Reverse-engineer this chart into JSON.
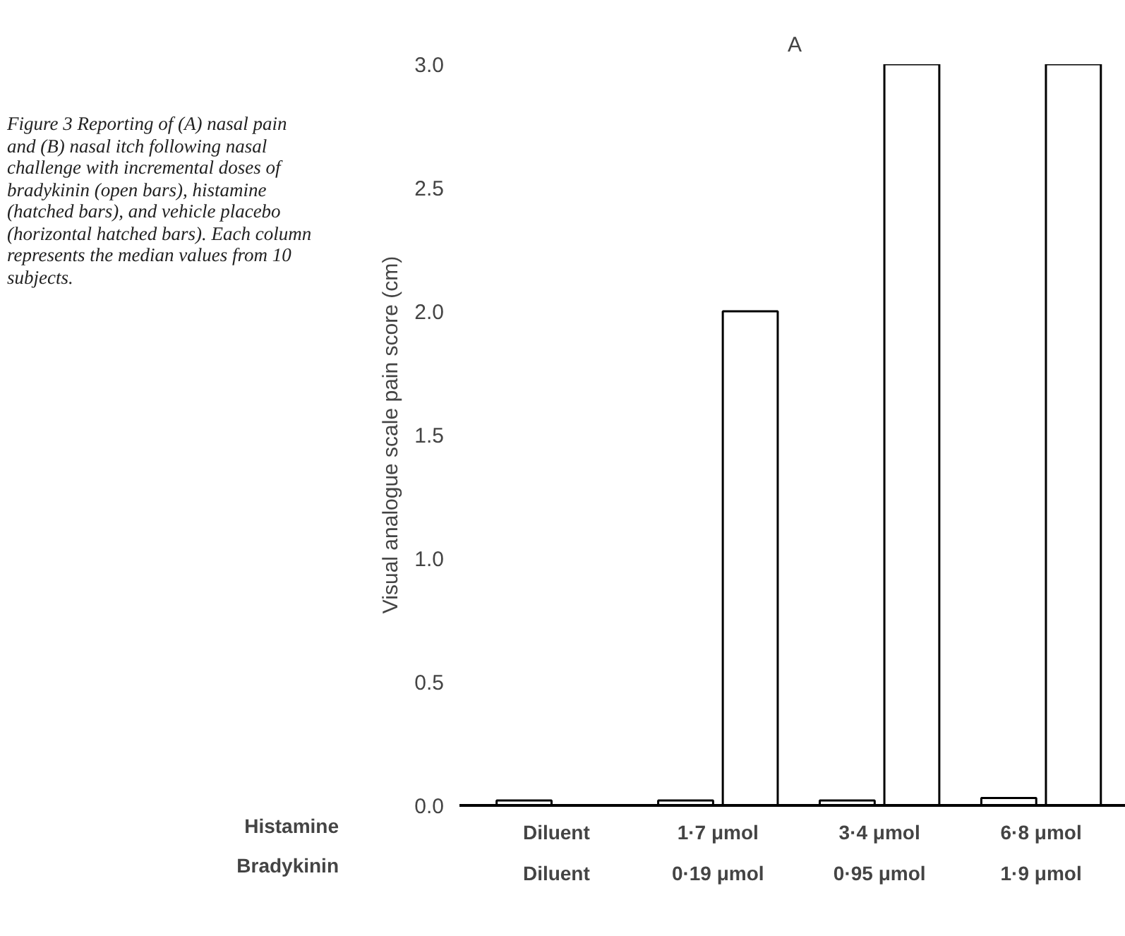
{
  "chart_data": {
    "type": "bar",
    "title": "A",
    "ylabel": "Visual analogue scale pain score (cm)",
    "categories": [
      "Diluent\nDiluent",
      "1·7 μmol\n0·19 μmol",
      "3·4 μmol\n0·95 μmol",
      "6·8 μmol\n1·9 μmol"
    ],
    "series": [
      {
        "color": "#ffffff",
        "values": [
          0.02,
          0.02,
          0.02,
          0.03
        ]
      },
      {
        "color": "#ffffff",
        "values": [
          null,
          2.0,
          3.0,
          3.0
        ]
      }
    ],
    "ylim": [
      0,
      3
    ],
    "yticks": [
      {
        "value": 0,
        "label": "0.0"
      },
      {
        "value": 0.5,
        "label": "0.5"
      },
      {
        "value": 1,
        "label": "1.0"
      },
      {
        "value": 1.5,
        "label": "1.5"
      },
      {
        "value": 2,
        "label": "2.0"
      },
      {
        "value": 2.5,
        "label": "2.5"
      },
      {
        "value": 3,
        "label": "3.0"
      }
    ],
    "grid": false,
    "annotations": [
      "Histamine",
      "Bradykinin",
      "Figure 3    Reporting of (A) nasal pain and (B) nasal itch following nasal challenge with incremental doses of bradykinin (open bars), histamine (hatched bars), and vehicle placebo (horizontal hatched bars). Each column represents the median values from 10 subjects."
    ]
  }
}
